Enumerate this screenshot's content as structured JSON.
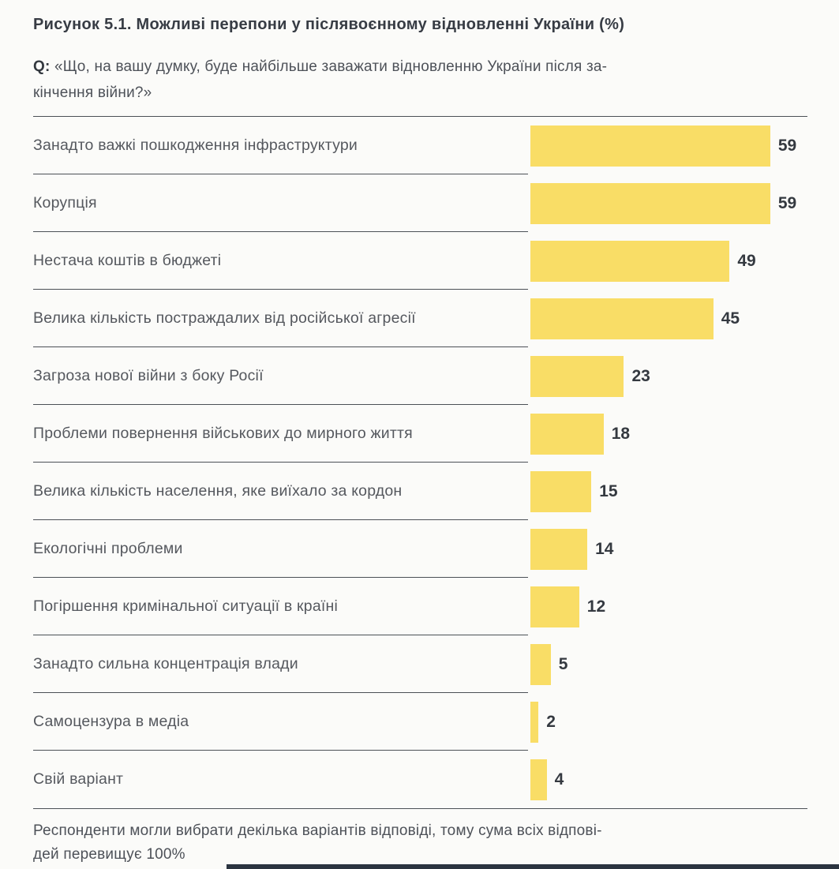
{
  "figure": {
    "title": "Рисунок 5.1. Можливі перепони у післявоєнному відновленні України (%)",
    "question_prefix": "Q:",
    "question_line1": "«Що, на вашу думку, буде найбільше заважати відновленню України після за-",
    "question_line2": "кінчення війни?»",
    "footnote_line1": "Респонденти могли вибрати декілька варіантів відповіді, тому сума всіх відпові-",
    "footnote_line2": "дей перевищує 100%"
  },
  "chart_data": {
    "type": "bar",
    "orientation": "horizontal",
    "title": "Рисунок 5.1. Можливі перепони у післявоєнному відновленні України (%)",
    "unit": "%",
    "categories": [
      "Занадто важкі пошкодження інфраструктури",
      "Корупція",
      "Нестача коштів в бюджеті",
      "Велика кількість постраждалих від російської агресії",
      "Загроза нової війни з боку Росії",
      "Проблеми повернення військових до мирного життя",
      "Велика кількість населення, яке виїхало за кордон",
      "Екологічні проблеми",
      "Погіршення кримінальної ситуації в країні",
      "Занадто сильна концентрація влади",
      "Самоцензура в медіа",
      "Свій варіант"
    ],
    "values": [
      59,
      59,
      49,
      45,
      23,
      18,
      15,
      14,
      12,
      5,
      2,
      4
    ],
    "xlim": [
      0,
      68
    ],
    "grid": false,
    "value_labels": true,
    "bar_color": "#F9DD66",
    "colors": {
      "background": "#FBFBF9",
      "title_text": "#373C44",
      "label_text": "#55585E",
      "value_text": "#343940",
      "rule": "#4B5056",
      "bottom_accent": "#2B3440"
    }
  }
}
